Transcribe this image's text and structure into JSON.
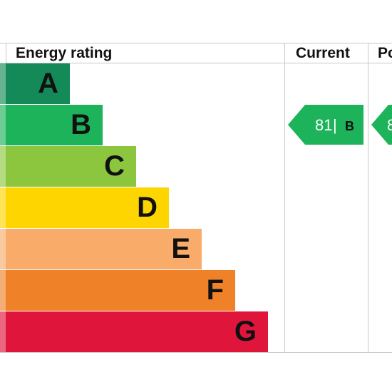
{
  "header": {
    "rating_label": "Energy rating",
    "current_label": "Current",
    "potential_label": "Po"
  },
  "chart_data": {
    "type": "bar",
    "categories": [
      "A",
      "B",
      "C",
      "D",
      "E",
      "F",
      "G"
    ],
    "values": [
      1,
      2,
      3,
      4,
      5,
      6,
      7
    ],
    "colors": [
      "#138a57",
      "#1db35b",
      "#8cc63f",
      "#ffd500",
      "#f9ac6a",
      "#ef8128",
      "#e0153c"
    ],
    "letter_colors": [
      "#111111",
      "#111111",
      "#111111",
      "#111111",
      "#111111",
      "#111111",
      "#111111"
    ],
    "title": "",
    "xlabel": "",
    "ylabel": ""
  },
  "current": {
    "score": "81",
    "separator": "|",
    "band": "B",
    "color": "#1db35b"
  },
  "potential": {
    "score": "8",
    "color": "#1db35b"
  }
}
